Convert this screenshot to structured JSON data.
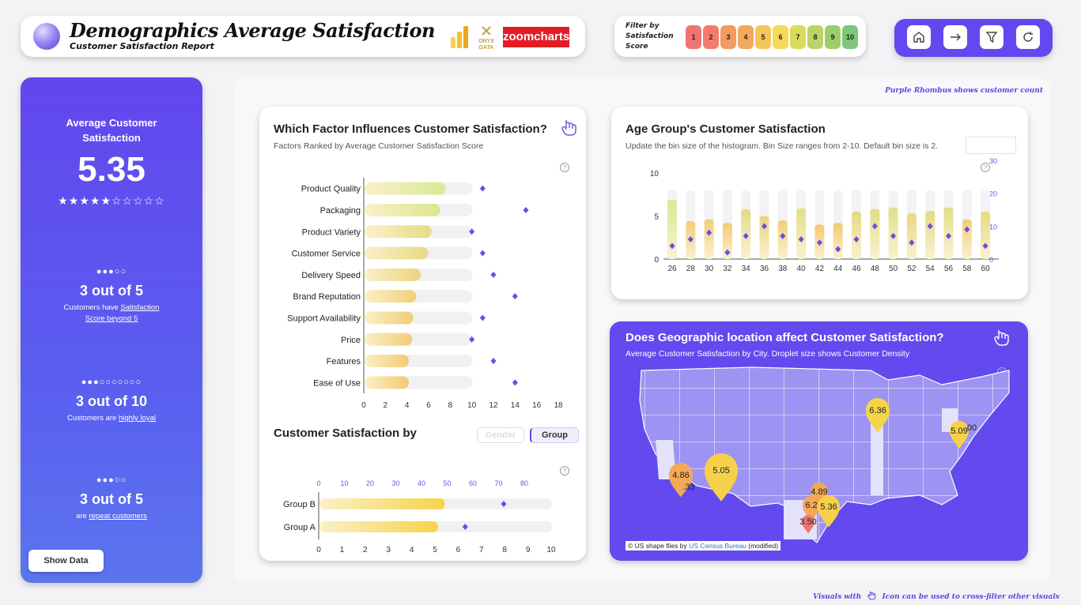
{
  "header": {
    "title": "Demographics Average Satisfaction",
    "subtitle": "Customer Satisfaction Report",
    "onyx_logo_text": "ONYX DATA",
    "zoomcharts_logo_text": "zoomcharts"
  },
  "filter": {
    "label": "Filter by Satisfaction Score",
    "scores": [
      {
        "label": "1",
        "color": "#f07470"
      },
      {
        "label": "2",
        "color": "#f37b6c"
      },
      {
        "label": "3",
        "color": "#f49a62"
      },
      {
        "label": "4",
        "color": "#f3a95c"
      },
      {
        "label": "5",
        "color": "#f4c55a"
      },
      {
        "label": "6",
        "color": "#f6d95a"
      },
      {
        "label": "7",
        "color": "#dbdb5c"
      },
      {
        "label": "8",
        "color": "#b9d566"
      },
      {
        "label": "9",
        "color": "#9ccd6a"
      },
      {
        "label": "10",
        "color": "#7fc57a"
      }
    ]
  },
  "nav": {
    "home_icon": "house-icon",
    "next_icon": "arrow-right-icon",
    "filter_icon": "funnel-icon",
    "reset_icon": "refresh-icon"
  },
  "kpi": {
    "title": "Average Customer Satisfaction",
    "value": "5.35",
    "stars": "★★★★★☆☆☆☆☆",
    "stat1": {
      "dots": "●●●○○",
      "big": "3 out of 5",
      "pre": "Customers have ",
      "link": "Satisfaction Score beyond 5"
    },
    "stat2": {
      "dots": "●●●○○○○○○○",
      "big": "3 out of 10",
      "pre": "Customers are ",
      "link": "highly loyal"
    },
    "stat3": {
      "dots": "●●●○○",
      "big": "3 out of 5",
      "pre": "are ",
      "link": "repeat customers"
    },
    "show_data": "Show Data"
  },
  "notes": {
    "top": "Purple Rhombus shows customer count",
    "bottom_pre": "Visuals with",
    "bottom_post": "Icon can be used to cross-filter other visuals"
  },
  "factor_card": {
    "title": "Which Factor Influences Customer Satisfaction?",
    "subtitle": "Factors Ranked by Average Customer Satisfaction Score"
  },
  "group_card": {
    "title": "Customer Satisfaction by",
    "toggle_gender": "Gender",
    "toggle_group": "Group"
  },
  "age_card": {
    "title": "Age Group's Customer Satisfaction",
    "subtitle": "Update the bin size of the histogram. Bin Size ranges from 2-10. Default bin size is 2."
  },
  "geo_card": {
    "title": "Does Geographic location affect Customer Satisfaction?",
    "subtitle": "Average Customer Satisfaction by City. Droplet size shows Customer Density",
    "attribution_pre": "© US shape files by ",
    "attribution_link": "US Census Bureau",
    "attribution_post": " (modified)",
    "pins": [
      {
        "label": "6.36",
        "color": "#f4d54a"
      },
      {
        "label": "5.09",
        "color": "#f6d04a"
      },
      {
        "label": "4.86",
        "color": "#f3a856"
      },
      {
        "label": "5.05",
        "color": "#f6d04a"
      },
      {
        "label": "4.89",
        "color": "#f3a856"
      },
      {
        "label": "6.2",
        "color": "#f3a856"
      },
      {
        "label": "5.36",
        "color": "#f6d04a"
      },
      {
        "label": "3.50",
        "color": "#f07470"
      }
    ],
    "partial_labels": [
      ".33",
      "00"
    ]
  },
  "chart_data": [
    {
      "type": "bar",
      "orientation": "horizontal",
      "title": "Which Factor Influences Customer Satisfaction?",
      "categories": [
        "Product Quality",
        "Packaging",
        "Product Variety",
        "Customer Service",
        "Delivery Speed",
        "Brand Reputation",
        "Support Availability",
        "Price",
        "Features",
        "Ease of Use"
      ],
      "values": [
        7.5,
        7.0,
        6.2,
        5.9,
        5.2,
        4.8,
        4.5,
        4.4,
        4.1,
        4.1
      ],
      "marker_values": [
        11,
        15,
        10,
        11,
        12,
        14,
        11,
        10,
        12,
        14
      ],
      "xlim": [
        0,
        18
      ],
      "xticks": [
        "0",
        "2",
        "4",
        "6",
        "8",
        "10",
        "12",
        "14",
        "16",
        "18"
      ]
    },
    {
      "type": "bar",
      "orientation": "horizontal",
      "categories": [
        "Group B",
        "Group A"
      ],
      "values": [
        5.4,
        5.1
      ],
      "marker_values": [
        72,
        57
      ],
      "xlim": [
        0,
        10
      ],
      "xticks": [
        "0",
        "1",
        "2",
        "3",
        "4",
        "5",
        "6",
        "7",
        "8",
        "9",
        "10"
      ],
      "top_xlim": [
        0,
        80
      ],
      "top_xticks": [
        "0",
        "10",
        "20",
        "30",
        "40",
        "50",
        "60",
        "70",
        "80"
      ]
    },
    {
      "type": "bar",
      "title": "Age Group's Customer Satisfaction",
      "categories": [
        "26",
        "28",
        "30",
        "32",
        "34",
        "36",
        "38",
        "40",
        "42",
        "44",
        "46",
        "48",
        "50",
        "52",
        "54",
        "56",
        "58",
        "60"
      ],
      "values": [
        6.9,
        4.4,
        4.6,
        4.2,
        5.8,
        5.0,
        4.5,
        5.9,
        4.0,
        4.2,
        5.5,
        5.8,
        6.0,
        5.3,
        5.6,
        6.0,
        4.6,
        5.5
      ],
      "marker_values": [
        4,
        6,
        8,
        2,
        7,
        10,
        7,
        6,
        5,
        3,
        6,
        10,
        7,
        5,
        10,
        7,
        9,
        4
      ],
      "ylim": [
        0,
        10
      ],
      "yticks": [
        "0",
        "5",
        "10"
      ],
      "y2lim": [
        0,
        30
      ],
      "y2ticks": [
        "0",
        "10",
        "20",
        "30"
      ]
    }
  ]
}
